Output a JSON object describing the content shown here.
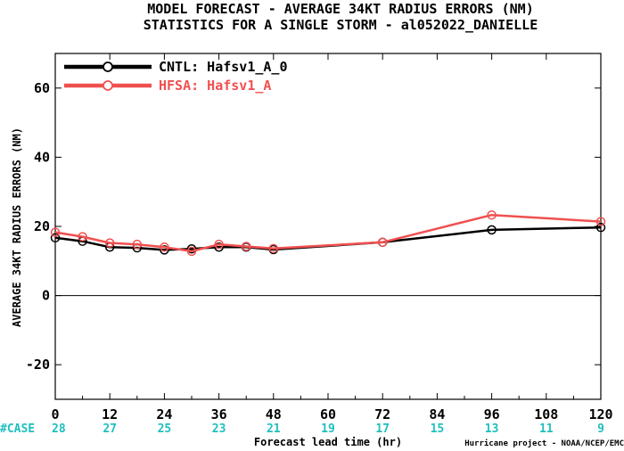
{
  "chart_data": {
    "type": "line",
    "title": "MODEL FORECAST - AVERAGE 34KT RADIUS ERRORS (NM)",
    "subtitle": "STATISTICS FOR A SINGLE STORM - al052022_DANIELLE",
    "xlabel": "Forecast lead time (hr)",
    "ylabel": "AVERAGE 34KT RADIUS ERRORS (NM)",
    "xlim": [
      0,
      120
    ],
    "ylim": [
      -30,
      70
    ],
    "xticks": [
      0,
      12,
      24,
      36,
      48,
      60,
      72,
      84,
      96,
      108,
      120
    ],
    "yticks": [
      -20,
      0,
      20,
      40,
      60
    ],
    "zero_line": true,
    "legend_position": "top-left",
    "case_label": "#CASE",
    "case_counts": [
      "28",
      "27",
      "25",
      "23",
      "21",
      "19",
      "17",
      "15",
      "13",
      "11",
      "9"
    ],
    "series": [
      {
        "name": "CNTL: Hafsv1_A_0",
        "color": "#000000",
        "x": [
          0,
          6,
          12,
          18,
          24,
          30,
          36,
          42,
          48,
          72,
          96,
          120
        ],
        "y": [
          16.7,
          15.7,
          14.0,
          13.8,
          13.2,
          13.5,
          14.0,
          14.0,
          13.3,
          15.4,
          19.0,
          19.7
        ]
      },
      {
        "name": "HFSA: Hafsv1_A",
        "color": "#f05050",
        "x": [
          0,
          6,
          12,
          18,
          24,
          30,
          36,
          42,
          48,
          72,
          96,
          120
        ],
        "y": [
          18.3,
          17.0,
          15.2,
          14.8,
          14.0,
          12.8,
          14.8,
          14.2,
          13.6,
          15.4,
          23.3,
          21.4
        ]
      }
    ]
  },
  "credit": "Hurricane project - NOAA/NCEP/EMC"
}
